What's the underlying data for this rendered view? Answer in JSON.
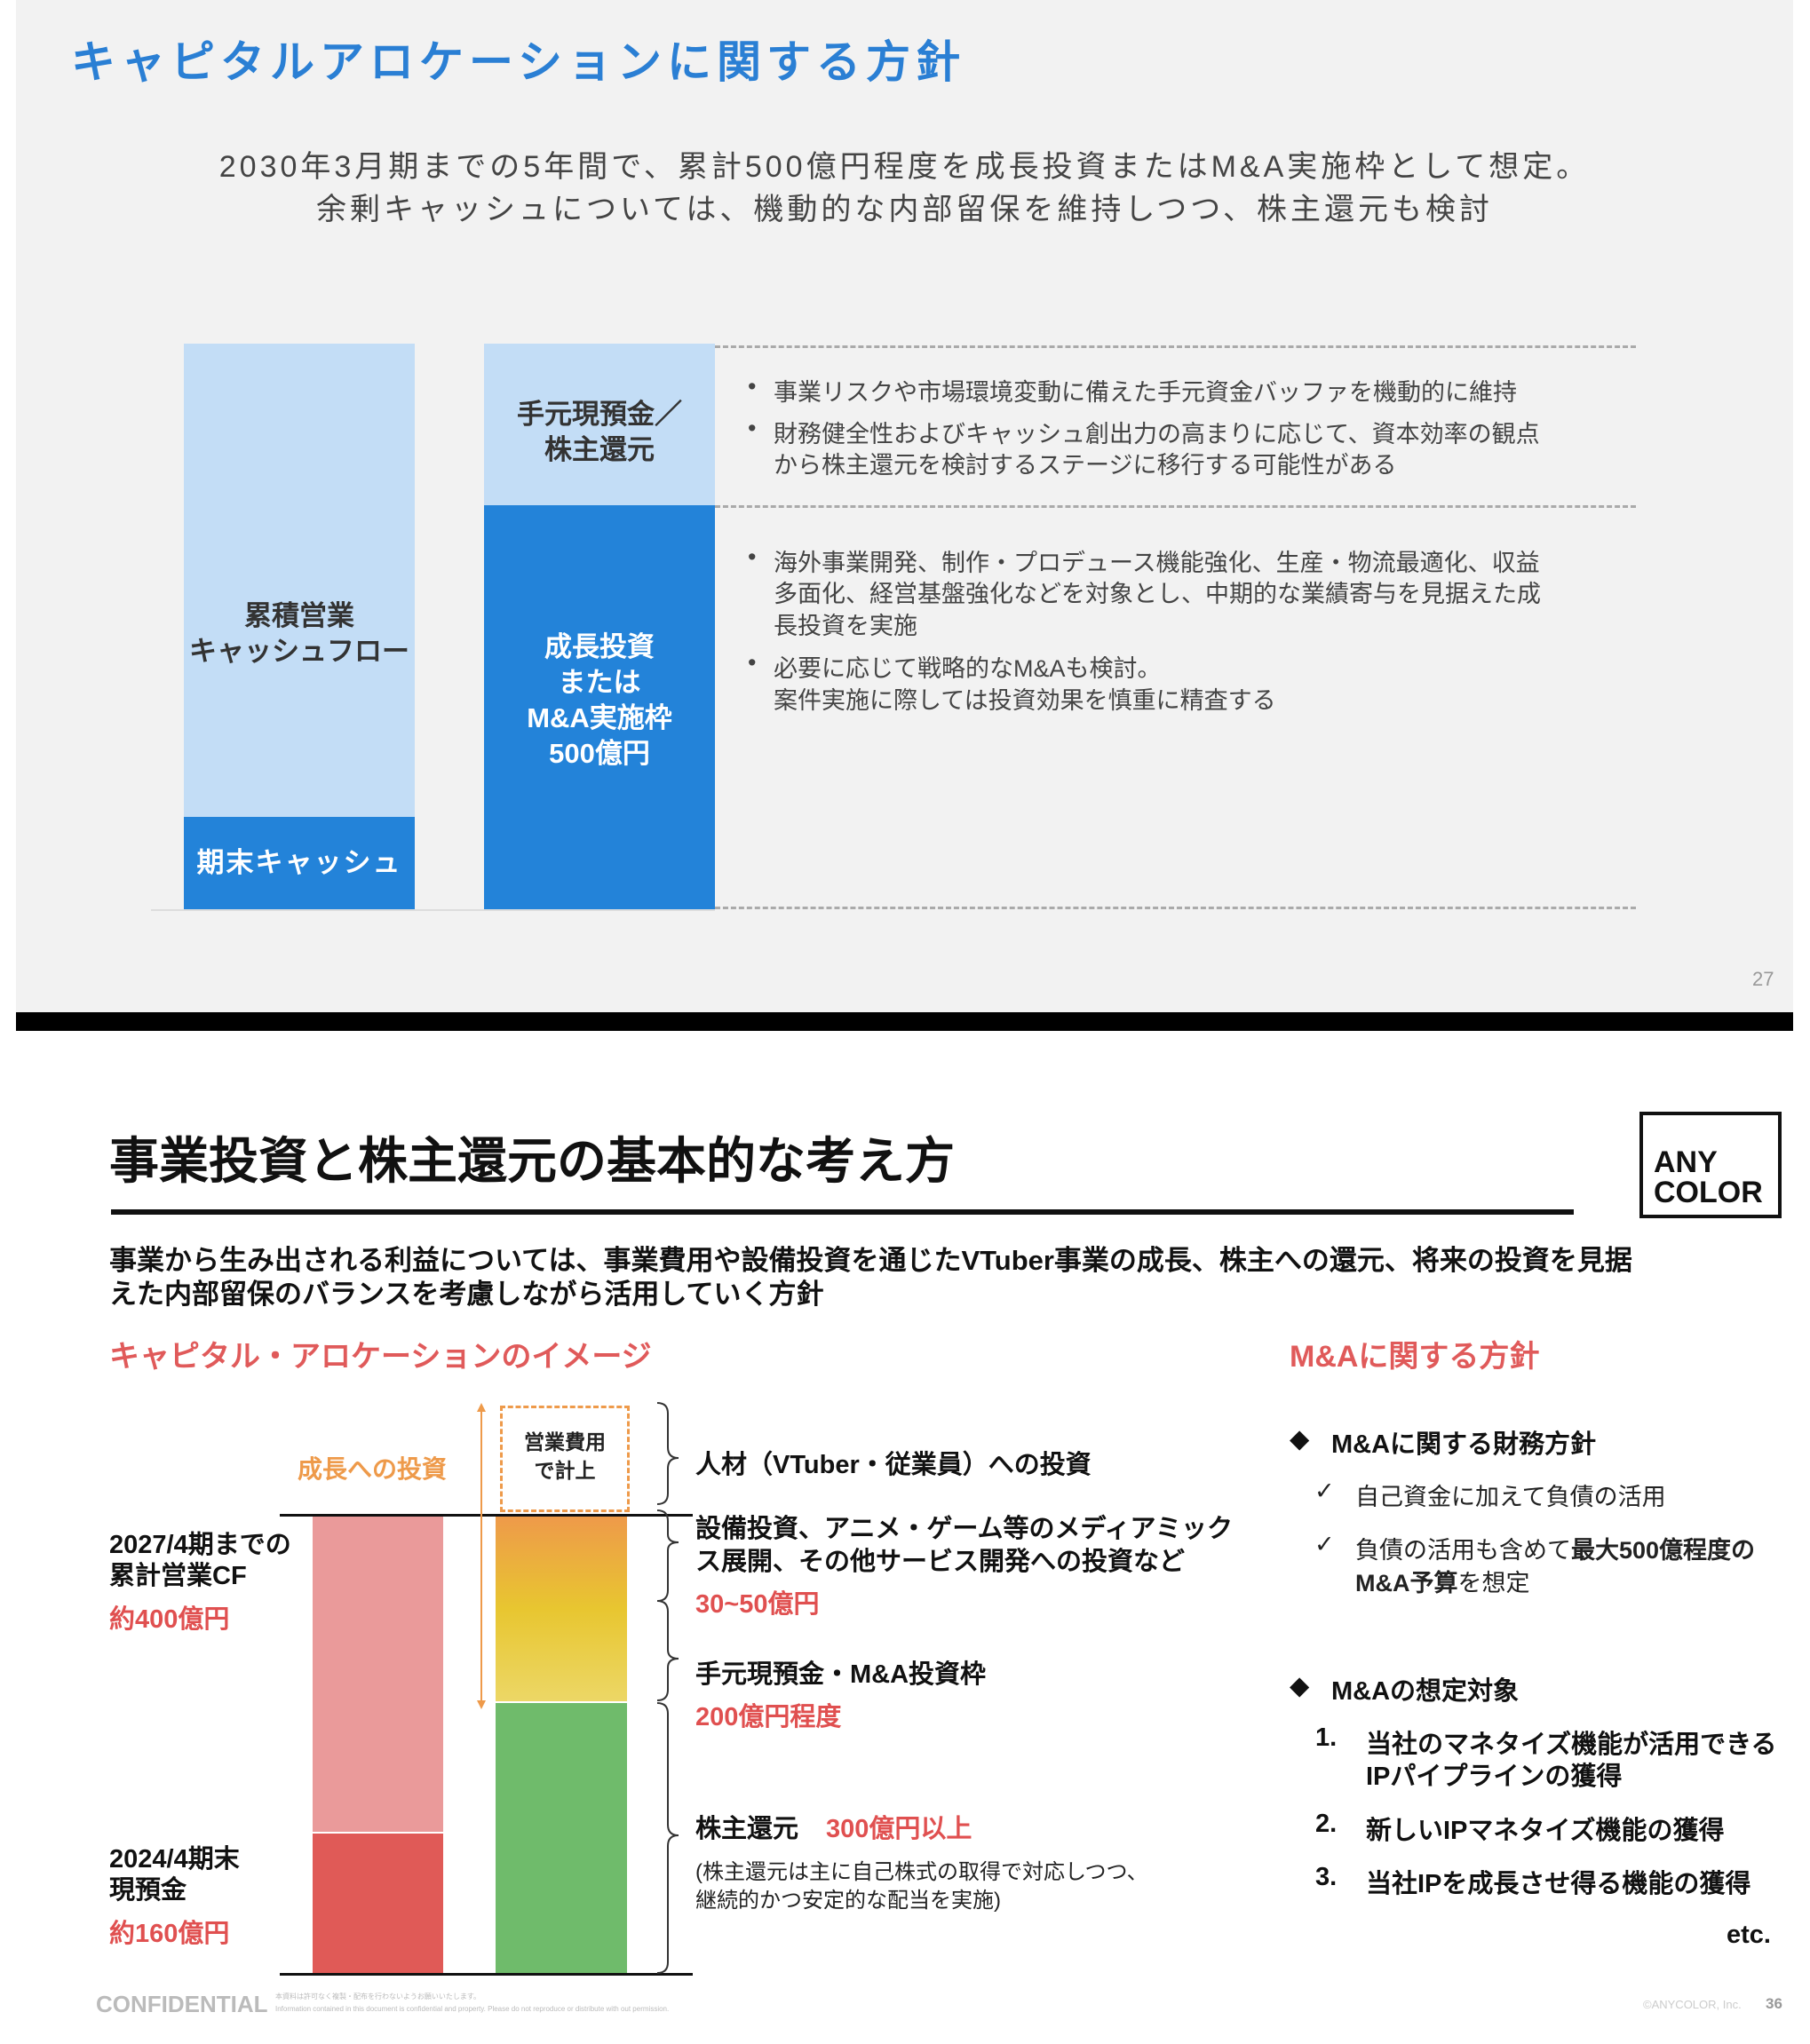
{
  "slide1": {
    "title": "キャピタルアロケーションに関する方針",
    "subtitle": [
      "2030年3月期までの5年間で、累計500億円程度を成長投資またはM&A実施枠として想定。",
      "余剰キャッシュについては、機動的な内部留保を維持しつつ、株主還元も検討"
    ],
    "left_bar": {
      "top_label": "累積営業\nキャッシュフロー",
      "bottom_label": "期末キャッシュ"
    },
    "right_bar": {
      "top_label": "手元現預金／\n株主還元",
      "bottom_label": "成長投資\nまたは\nM&A実施枠\n500億円"
    },
    "bullets_top": [
      [
        "事業リスクや市場環境変動に備えた手元資金バッファを機動的に維持"
      ],
      [
        "財務健全性およびキャッシュ創出力の高まりに応じて、資本効率の観点",
        "から株主還元を検討するステージに移行する可能性がある"
      ]
    ],
    "bullets_bottom": [
      [
        "海外事業開発、制作・プロデュース機能強化、生産・物流最適化、収益",
        "多面化、経営基盤強化などを対象とし、中期的な業績寄与を見据えた成",
        "長投資を実施"
      ],
      [
        "必要に応じて戦略的なM&Aも検討。",
        "案件実施に際しては投資効果を慎重に精査する"
      ]
    ],
    "page_number": "27",
    "colors": {
      "title": "#2a7fd4",
      "light_blue": "#c3ddf6",
      "dark_blue": "#2383d9"
    }
  },
  "slide2": {
    "title": "事業投資と株主還元の基本的な考え方",
    "logo": "ANY COLOR",
    "intro": [
      "事業から生み出される利益については、事業費用や設備投資を通じたVTuber事業の成長、株主への還元、将来の投資を見据",
      "えた内部留保のバランスを考慮しながら活用していく方針"
    ],
    "left_heading": "キャピタル・アロケーションのイメージ",
    "right_heading": "M&Aに関する方針",
    "growth_label": "成長への投資",
    "opex_box": [
      "営業費用",
      "で計上"
    ],
    "cf_label": [
      "2027/4期までの",
      "累計営業CF"
    ],
    "cf_value": "約400億円",
    "cash_label": [
      "2024/4期末",
      "現預金"
    ],
    "cash_value": "約160億円",
    "items": {
      "people": "人材（VTuber・従業員）への投資",
      "capex": [
        "設備投資、アニメ・ゲーム等のメディアミック",
        "ス展開、その他サービス開発への投資など"
      ],
      "capex_value": "30~50億円",
      "cash_ma": "手元現預金・M&A投資枠",
      "cash_ma_value": "200億円程度",
      "return": "株主還元",
      "return_value": "300億円以上",
      "return_note": [
        "(株主還元は主に自己株式の取得で対応しつつ、",
        "継続的かつ安定的な配当を実施)"
      ]
    },
    "ma": {
      "finance_heading": "M&Aに関する財務方針",
      "finance_items": [
        "自己資金に加えて負債の活用"
      ],
      "finance_item2_pre": "負債の活用も含めて",
      "finance_item2_bold": "最大500億程度の",
      "finance_item2_line2_bold": "M&A予算",
      "finance_item2_line2_rest": "を想定",
      "target_heading": "M&Aの想定対象",
      "targets": [
        {
          "num": "1.",
          "lines": [
            "当社のマネタイズ機能が活用できる",
            "IPパイプラインの獲得"
          ]
        },
        {
          "num": "2.",
          "lines": [
            "新しいIPマネタイズ機能の獲得"
          ]
        },
        {
          "num": "3.",
          "lines": [
            "当社IPを成長させ得る機能の獲得"
          ]
        }
      ],
      "etc": "etc."
    },
    "footer": {
      "confidential": "CONFIDENTIAL",
      "notice_ja": "本資料は許可なく複製・配布を行わないようお願いいたします。",
      "notice_en": "Information contained in this document is confidential and property. Please do not reproduce or distribute with out permission.",
      "copyright": "©ANYCOLOR, Inc.",
      "page_number": "36"
    },
    "colors": {
      "pink": "#ea9a9a",
      "red": "#e05a57",
      "green": "#6fbb6b",
      "orange": "#ee9a4a",
      "yellow": "#e8c630",
      "accent_red": "#e05050"
    }
  }
}
